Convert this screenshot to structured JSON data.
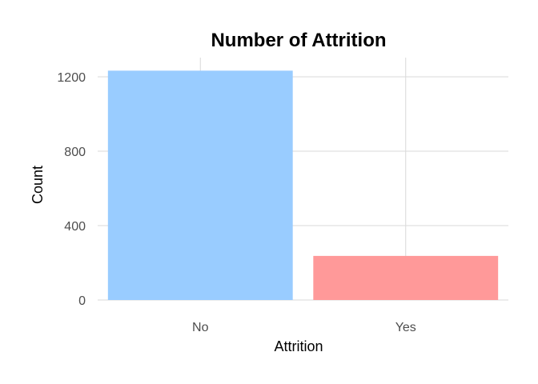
{
  "chart_data": {
    "type": "bar",
    "title": "Number of Attrition",
    "xlabel": "Attrition",
    "ylabel": "Count",
    "categories": [
      "No",
      "Yes"
    ],
    "values": [
      1233,
      237
    ],
    "colors": [
      "#99CCFF",
      "#FF9999"
    ],
    "ylim": [
      0,
      1300
    ],
    "yticks": [
      0,
      400,
      800,
      1200
    ],
    "grid": true,
    "legend": "none"
  }
}
